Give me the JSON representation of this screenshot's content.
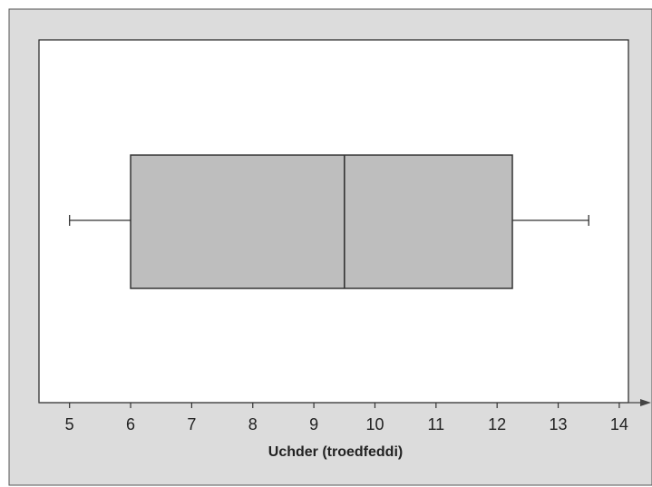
{
  "chart_data": {
    "type": "boxplot",
    "title": "",
    "xlabel": "Uchder (troedfeddi)",
    "ylabel": "",
    "xlim": [
      4.5,
      14.15
    ],
    "x_ticks": [
      5,
      6,
      7,
      8,
      9,
      10,
      11,
      12,
      13,
      14
    ],
    "x_tick_labels": [
      "5",
      "6",
      "7",
      "8",
      "9",
      "10",
      "11",
      "12",
      "13",
      "14"
    ],
    "orientation": "horizontal",
    "grid": false,
    "legend": "none",
    "box": {
      "min": 5,
      "q1": 6,
      "median": 9.5,
      "q3": 12.25,
      "max": 13.5
    },
    "colors": {
      "outer_background": "#dcdcdc",
      "plot_background": "#ffffff",
      "box_fill": "#bebebe",
      "stroke": "#333333",
      "axis_arrow": "#444444",
      "text": "#222222"
    }
  }
}
